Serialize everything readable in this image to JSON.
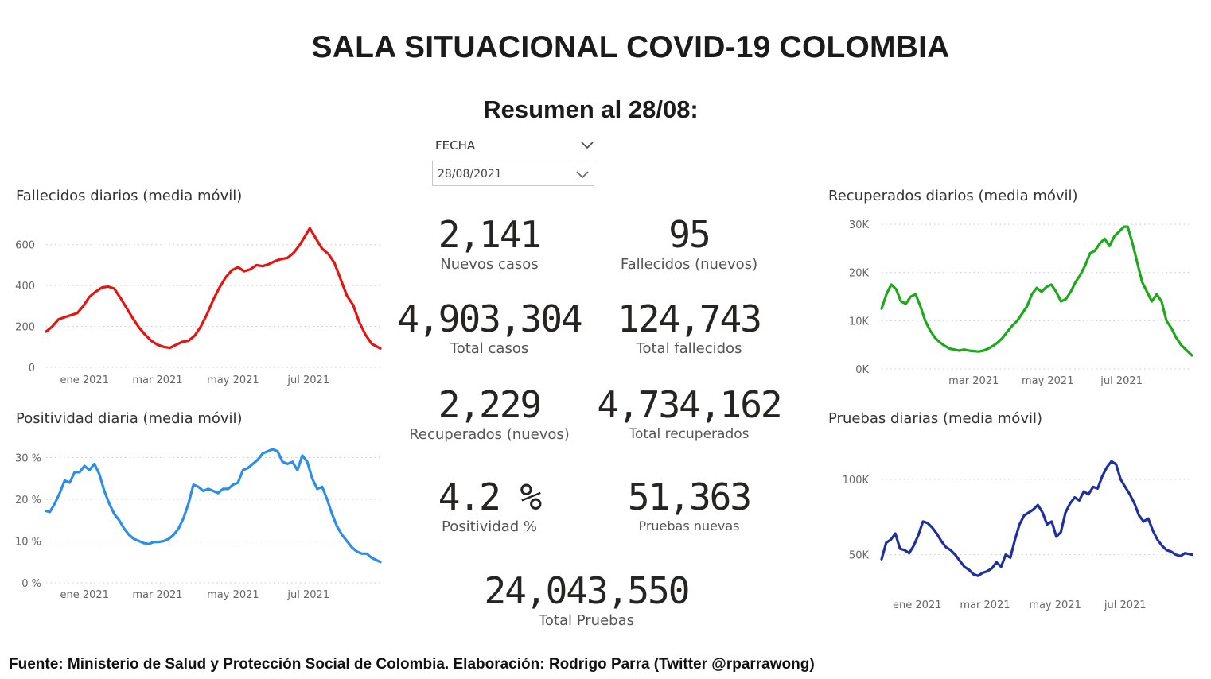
{
  "title": "SALA SITUACIONAL COVID-19 COLOMBIA",
  "summary_title": "Resumen al 28/08:",
  "slicer": {
    "label": "FECHA",
    "value": "28/08/2021"
  },
  "kpis": {
    "nuevos_casos": {
      "value": "2,141",
      "label": "Nuevos casos"
    },
    "fallecidos_nuevos": {
      "value": "95",
      "label": "Fallecidos (nuevos)"
    },
    "total_casos": {
      "value": "4,903,304",
      "label": "Total casos"
    },
    "total_fallecidos": {
      "value": "124,743",
      "label": "Total fallecidos"
    },
    "recuperados_nuevos": {
      "value": "2,229",
      "label": "Recuperados (nuevos)"
    },
    "total_recuperados": {
      "value": "4,734,162",
      "label": "Total recuperados"
    },
    "positividad": {
      "value": "4.2 %",
      "label": "Positividad %"
    },
    "pruebas_nuevas": {
      "value": "51,363",
      "label": "Pruebas nuevas"
    },
    "total_pruebas": {
      "value": "24,043,550",
      "label": "Total Pruebas"
    }
  },
  "footer": "Fuente: Ministerio de Salud y Protección Social de Colombia. Elaboración: Rodrigo Parra (Twitter @rparrawong)",
  "chart_data": [
    {
      "id": "fallecidos",
      "type": "line",
      "title": "Fallecidos diarios (media móvil)",
      "color": "#e8130f",
      "x_range": [
        "2020-12-01",
        "2021-08-28"
      ],
      "ylim": [
        0,
        700
      ],
      "yticks": [
        0,
        200,
        400,
        600
      ],
      "ytick_labels": [
        "0",
        "200",
        "400",
        "600"
      ],
      "xticks": [
        {
          "date": "2021-01-01",
          "label": "ene 2021"
        },
        {
          "date": "2021-03-01",
          "label": "mar 2021"
        },
        {
          "date": "2021-05-01",
          "label": "may 2021"
        },
        {
          "date": "2021-07-01",
          "label": "jul 2021"
        }
      ],
      "grid": true,
      "points": [
        [
          "2020-12-01",
          175
        ],
        [
          "2020-12-06",
          200
        ],
        [
          "2020-12-11",
          235
        ],
        [
          "2020-12-16",
          245
        ],
        [
          "2020-12-21",
          255
        ],
        [
          "2020-12-26",
          265
        ],
        [
          "2020-12-31",
          300
        ],
        [
          "2021-01-05",
          345
        ],
        [
          "2021-01-10",
          370
        ],
        [
          "2021-01-15",
          390
        ],
        [
          "2021-01-20",
          395
        ],
        [
          "2021-01-25",
          385
        ],
        [
          "2021-01-30",
          340
        ],
        [
          "2021-02-04",
          290
        ],
        [
          "2021-02-09",
          240
        ],
        [
          "2021-02-14",
          195
        ],
        [
          "2021-02-19",
          160
        ],
        [
          "2021-02-24",
          130
        ],
        [
          "2021-03-01",
          110
        ],
        [
          "2021-03-06",
          100
        ],
        [
          "2021-03-11",
          95
        ],
        [
          "2021-03-16",
          110
        ],
        [
          "2021-03-21",
          125
        ],
        [
          "2021-03-26",
          130
        ],
        [
          "2021-03-31",
          155
        ],
        [
          "2021-04-05",
          200
        ],
        [
          "2021-04-10",
          260
        ],
        [
          "2021-04-15",
          330
        ],
        [
          "2021-04-20",
          390
        ],
        [
          "2021-04-25",
          440
        ],
        [
          "2021-04-30",
          475
        ],
        [
          "2021-05-05",
          490
        ],
        [
          "2021-05-10",
          470
        ],
        [
          "2021-05-15",
          480
        ],
        [
          "2021-05-20",
          500
        ],
        [
          "2021-05-25",
          495
        ],
        [
          "2021-05-30",
          505
        ],
        [
          "2021-06-04",
          520
        ],
        [
          "2021-06-09",
          530
        ],
        [
          "2021-06-14",
          535
        ],
        [
          "2021-06-19",
          560
        ],
        [
          "2021-06-24",
          600
        ],
        [
          "2021-06-29",
          650
        ],
        [
          "2021-07-02",
          680
        ],
        [
          "2021-07-07",
          630
        ],
        [
          "2021-07-12",
          580
        ],
        [
          "2021-07-17",
          555
        ],
        [
          "2021-07-22",
          510
        ],
        [
          "2021-07-27",
          430
        ],
        [
          "2021-08-01",
          350
        ],
        [
          "2021-08-06",
          305
        ],
        [
          "2021-08-11",
          220
        ],
        [
          "2021-08-16",
          160
        ],
        [
          "2021-08-21",
          115
        ],
        [
          "2021-08-28",
          92
        ]
      ]
    },
    {
      "id": "positividad",
      "type": "line",
      "title": "Positividad diaria (media móvil)",
      "color": "#2b8ee8",
      "x_range": [
        "2020-12-01",
        "2021-08-28"
      ],
      "ylim": [
        0,
        32
      ],
      "yticks": [
        0,
        10,
        20,
        30
      ],
      "ytick_labels": [
        "0 %",
        "10 %",
        "20 %",
        "30 %"
      ],
      "xticks": [
        {
          "date": "2021-01-01",
          "label": "ene 2021"
        },
        {
          "date": "2021-03-01",
          "label": "mar 2021"
        },
        {
          "date": "2021-05-01",
          "label": "may 2021"
        },
        {
          "date": "2021-07-01",
          "label": "jul 2021"
        }
      ],
      "grid": true,
      "points": [
        [
          "2020-12-01",
          17.2
        ],
        [
          "2020-12-04",
          17.0
        ],
        [
          "2020-12-08",
          19.0
        ],
        [
          "2020-12-12",
          21.5
        ],
        [
          "2020-12-16",
          24.5
        ],
        [
          "2020-12-20",
          24.0
        ],
        [
          "2020-12-24",
          26.5
        ],
        [
          "2020-12-28",
          26.5
        ],
        [
          "2021-01-01",
          28.0
        ],
        [
          "2021-01-05",
          27.0
        ],
        [
          "2021-01-09",
          28.5
        ],
        [
          "2021-01-13",
          26.0
        ],
        [
          "2021-01-17",
          22.0
        ],
        [
          "2021-01-21",
          19.0
        ],
        [
          "2021-01-25",
          16.5
        ],
        [
          "2021-01-29",
          15.0
        ],
        [
          "2021-02-02",
          13.0
        ],
        [
          "2021-02-06",
          11.5
        ],
        [
          "2021-02-10",
          10.5
        ],
        [
          "2021-02-14",
          10.0
        ],
        [
          "2021-02-18",
          9.5
        ],
        [
          "2021-02-22",
          9.3
        ],
        [
          "2021-02-26",
          9.8
        ],
        [
          "2021-03-02",
          9.8
        ],
        [
          "2021-03-06",
          10.0
        ],
        [
          "2021-03-10",
          10.5
        ],
        [
          "2021-03-14",
          11.5
        ],
        [
          "2021-03-18",
          13.0
        ],
        [
          "2021-03-22",
          15.5
        ],
        [
          "2021-03-26",
          19.0
        ],
        [
          "2021-03-30",
          23.5
        ],
        [
          "2021-04-03",
          23.0
        ],
        [
          "2021-04-07",
          22.0
        ],
        [
          "2021-04-11",
          22.5
        ],
        [
          "2021-04-15",
          22.0
        ],
        [
          "2021-04-19",
          21.5
        ],
        [
          "2021-04-23",
          22.5
        ],
        [
          "2021-04-27",
          22.5
        ],
        [
          "2021-05-01",
          23.5
        ],
        [
          "2021-05-05",
          24.0
        ],
        [
          "2021-05-09",
          27.0
        ],
        [
          "2021-05-13",
          27.5
        ],
        [
          "2021-05-17",
          28.5
        ],
        [
          "2021-05-21",
          29.5
        ],
        [
          "2021-05-25",
          31.0
        ],
        [
          "2021-05-29",
          31.5
        ],
        [
          "2021-06-02",
          32.0
        ],
        [
          "2021-06-06",
          31.5
        ],
        [
          "2021-06-10",
          29.0
        ],
        [
          "2021-06-14",
          28.5
        ],
        [
          "2021-06-18",
          29.0
        ],
        [
          "2021-06-22",
          27.0
        ],
        [
          "2021-06-26",
          30.5
        ],
        [
          "2021-06-30",
          29.0
        ],
        [
          "2021-07-04",
          25.0
        ],
        [
          "2021-07-08",
          22.5
        ],
        [
          "2021-07-12",
          23.0
        ],
        [
          "2021-07-16",
          20.0
        ],
        [
          "2021-07-20",
          16.5
        ],
        [
          "2021-07-24",
          13.5
        ],
        [
          "2021-07-28",
          11.5
        ],
        [
          "2021-08-01",
          10.0
        ],
        [
          "2021-08-05",
          8.5
        ],
        [
          "2021-08-09",
          7.5
        ],
        [
          "2021-08-13",
          7.0
        ],
        [
          "2021-08-17",
          7.0
        ],
        [
          "2021-08-21",
          6.0
        ],
        [
          "2021-08-28",
          5.0
        ]
      ]
    },
    {
      "id": "recuperados",
      "type": "line",
      "title": "Recuperados diarios (media móvil)",
      "color": "#1aaa1a",
      "x_range": [
        "2020-12-15",
        "2021-08-28"
      ],
      "ylim": [
        0,
        31000
      ],
      "yticks": [
        0,
        10000,
        20000,
        30000
      ],
      "ytick_labels": [
        "0K",
        "10K",
        "20K",
        "30K"
      ],
      "xticks": [
        {
          "date": "2021-03-01",
          "label": "mar 2021"
        },
        {
          "date": "2021-05-01",
          "label": "may 2021"
        },
        {
          "date": "2021-07-01",
          "label": "jul 2021"
        }
      ],
      "grid": true,
      "points": [
        [
          "2020-12-15",
          12500
        ],
        [
          "2020-12-19",
          15500
        ],
        [
          "2020-12-23",
          17500
        ],
        [
          "2020-12-27",
          16500
        ],
        [
          "2020-12-31",
          14000
        ],
        [
          "2021-01-04",
          13500
        ],
        [
          "2021-01-08",
          15000
        ],
        [
          "2021-01-12",
          15500
        ],
        [
          "2021-01-16",
          13000
        ],
        [
          "2021-01-20",
          10000
        ],
        [
          "2021-01-24",
          8000
        ],
        [
          "2021-01-28",
          6500
        ],
        [
          "2021-02-01",
          5500
        ],
        [
          "2021-02-05",
          4800
        ],
        [
          "2021-02-09",
          4200
        ],
        [
          "2021-02-13",
          4000
        ],
        [
          "2021-02-17",
          3800
        ],
        [
          "2021-02-21",
          4000
        ],
        [
          "2021-02-25",
          3800
        ],
        [
          "2021-03-01",
          3700
        ],
        [
          "2021-03-05",
          3600
        ],
        [
          "2021-03-09",
          3800
        ],
        [
          "2021-03-13",
          4200
        ],
        [
          "2021-03-17",
          4800
        ],
        [
          "2021-03-21",
          5500
        ],
        [
          "2021-03-25",
          6500
        ],
        [
          "2021-03-29",
          7800
        ],
        [
          "2021-04-02",
          9000
        ],
        [
          "2021-04-06",
          10000
        ],
        [
          "2021-04-10",
          11500
        ],
        [
          "2021-04-14",
          13000
        ],
        [
          "2021-04-18",
          15500
        ],
        [
          "2021-04-22",
          16800
        ],
        [
          "2021-04-26",
          16000
        ],
        [
          "2021-04-30",
          17000
        ],
        [
          "2021-05-04",
          17500
        ],
        [
          "2021-05-08",
          16000
        ],
        [
          "2021-05-12",
          14000
        ],
        [
          "2021-05-16",
          14500
        ],
        [
          "2021-05-20",
          16000
        ],
        [
          "2021-05-24",
          18000
        ],
        [
          "2021-05-28",
          19500
        ],
        [
          "2021-06-01",
          21500
        ],
        [
          "2021-06-05",
          24000
        ],
        [
          "2021-06-09",
          24500
        ],
        [
          "2021-06-13",
          26000
        ],
        [
          "2021-06-17",
          27000
        ],
        [
          "2021-06-21",
          25500
        ],
        [
          "2021-06-25",
          27500
        ],
        [
          "2021-06-29",
          28500
        ],
        [
          "2021-07-03",
          29500
        ],
        [
          "2021-07-06",
          29500
        ],
        [
          "2021-07-10",
          26000
        ],
        [
          "2021-07-14",
          22000
        ],
        [
          "2021-07-18",
          18000
        ],
        [
          "2021-07-22",
          16000
        ],
        [
          "2021-07-26",
          14000
        ],
        [
          "2021-07-30",
          15500
        ],
        [
          "2021-08-03",
          14000
        ],
        [
          "2021-08-07",
          10000
        ],
        [
          "2021-08-11",
          8500
        ],
        [
          "2021-08-15",
          6500
        ],
        [
          "2021-08-19",
          5000
        ],
        [
          "2021-08-23",
          4000
        ],
        [
          "2021-08-28",
          2800
        ]
      ]
    },
    {
      "id": "pruebas",
      "type": "line",
      "title": "Pruebas diarias (media móvil)",
      "color": "#1f2f9e",
      "x_range": [
        "2020-12-01",
        "2021-08-28"
      ],
      "ylim": [
        25000,
        120000
      ],
      "yticks": [
        50000,
        100000
      ],
      "ytick_labels": [
        "50K",
        "100K"
      ],
      "xticks": [
        {
          "date": "2021-01-01",
          "label": "ene 2021"
        },
        {
          "date": "2021-03-01",
          "label": "mar 2021"
        },
        {
          "date": "2021-05-01",
          "label": "may 2021"
        },
        {
          "date": "2021-07-01",
          "label": "jul 2021"
        }
      ],
      "grid": true,
      "points": [
        [
          "2020-12-01",
          47000
        ],
        [
          "2020-12-05",
          58000
        ],
        [
          "2020-12-09",
          60000
        ],
        [
          "2020-12-13",
          64000
        ],
        [
          "2020-12-17",
          54000
        ],
        [
          "2020-12-21",
          53000
        ],
        [
          "2020-12-25",
          51000
        ],
        [
          "2020-12-29",
          56000
        ],
        [
          "2021-01-02",
          63000
        ],
        [
          "2021-01-06",
          72000
        ],
        [
          "2021-01-10",
          71000
        ],
        [
          "2021-01-14",
          68000
        ],
        [
          "2021-01-18",
          64000
        ],
        [
          "2021-01-22",
          59000
        ],
        [
          "2021-01-26",
          55000
        ],
        [
          "2021-01-30",
          53000
        ],
        [
          "2021-02-03",
          50000
        ],
        [
          "2021-02-07",
          46000
        ],
        [
          "2021-02-11",
          42000
        ],
        [
          "2021-02-15",
          40000
        ],
        [
          "2021-02-19",
          37000
        ],
        [
          "2021-02-23",
          36000
        ],
        [
          "2021-02-27",
          38000
        ],
        [
          "2021-03-03",
          39000
        ],
        [
          "2021-03-07",
          41000
        ],
        [
          "2021-03-11",
          45000
        ],
        [
          "2021-03-15",
          42000
        ],
        [
          "2021-03-19",
          50000
        ],
        [
          "2021-03-23",
          48000
        ],
        [
          "2021-03-27",
          60000
        ],
        [
          "2021-03-31",
          70000
        ],
        [
          "2021-04-04",
          76000
        ],
        [
          "2021-04-08",
          78000
        ],
        [
          "2021-04-12",
          80000
        ],
        [
          "2021-04-16",
          83000
        ],
        [
          "2021-04-20",
          78000
        ],
        [
          "2021-04-24",
          70000
        ],
        [
          "2021-04-28",
          72000
        ],
        [
          "2021-05-02",
          62000
        ],
        [
          "2021-05-06",
          65000
        ],
        [
          "2021-05-10",
          78000
        ],
        [
          "2021-05-14",
          84000
        ],
        [
          "2021-05-18",
          88000
        ],
        [
          "2021-05-22",
          86000
        ],
        [
          "2021-05-26",
          92000
        ],
        [
          "2021-05-30",
          90000
        ],
        [
          "2021-06-03",
          95000
        ],
        [
          "2021-06-07",
          94000
        ],
        [
          "2021-06-11",
          102000
        ],
        [
          "2021-06-15",
          108000
        ],
        [
          "2021-06-19",
          112000
        ],
        [
          "2021-06-23",
          110000
        ],
        [
          "2021-06-27",
          100000
        ],
        [
          "2021-07-01",
          95000
        ],
        [
          "2021-07-05",
          90000
        ],
        [
          "2021-07-09",
          84000
        ],
        [
          "2021-07-13",
          76000
        ],
        [
          "2021-07-17",
          72000
        ],
        [
          "2021-07-21",
          74000
        ],
        [
          "2021-07-25",
          66000
        ],
        [
          "2021-07-29",
          60000
        ],
        [
          "2021-08-02",
          56000
        ],
        [
          "2021-08-06",
          53000
        ],
        [
          "2021-08-10",
          52000
        ],
        [
          "2021-08-14",
          50000
        ],
        [
          "2021-08-18",
          49000
        ],
        [
          "2021-08-22",
          51000
        ],
        [
          "2021-08-28",
          50000
        ]
      ]
    }
  ]
}
